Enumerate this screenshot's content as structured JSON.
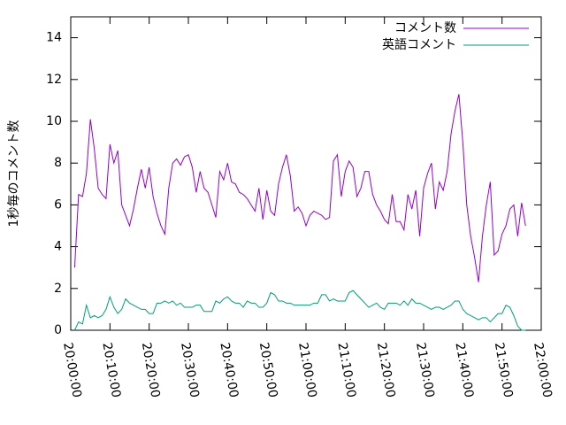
{
  "chart_data": {
    "type": "line",
    "y_label": "1秒毎のコメント数",
    "xlim": [
      "20:00:00",
      "22:00:00"
    ],
    "xticks": [
      "20:00:00",
      "20:10:00",
      "20:20:00",
      "20:30:00",
      "20:40:00",
      "20:50:00",
      "21:00:00",
      "21:10:00",
      "21:20:00",
      "21:30:00",
      "21:40:00",
      "21:50:00",
      "22:00:00"
    ],
    "ylim": [
      0,
      15
    ],
    "yticks": [
      0,
      2,
      4,
      6,
      8,
      10,
      12,
      14
    ],
    "legend": "top-right",
    "x": [
      "20:01:00",
      "20:02:00",
      "20:03:00",
      "20:04:00",
      "20:05:00",
      "20:06:00",
      "20:07:00",
      "20:08:00",
      "20:09:00",
      "20:10:00",
      "20:11:00",
      "20:12:00",
      "20:13:00",
      "20:14:00",
      "20:15:00",
      "20:16:00",
      "20:17:00",
      "20:18:00",
      "20:19:00",
      "20:20:00",
      "20:21:00",
      "20:22:00",
      "20:23:00",
      "20:24:00",
      "20:25:00",
      "20:26:00",
      "20:27:00",
      "20:28:00",
      "20:29:00",
      "20:30:00",
      "20:31:00",
      "20:32:00",
      "20:33:00",
      "20:34:00",
      "20:35:00",
      "20:36:00",
      "20:37:00",
      "20:38:00",
      "20:39:00",
      "20:40:00",
      "20:41:00",
      "20:42:00",
      "20:43:00",
      "20:44:00",
      "20:45:00",
      "20:46:00",
      "20:47:00",
      "20:48:00",
      "20:49:00",
      "20:50:00",
      "20:51:00",
      "20:52:00",
      "20:53:00",
      "20:54:00",
      "20:55:00",
      "20:56:00",
      "20:57:00",
      "20:58:00",
      "20:59:00",
      "21:00:00",
      "21:01:00",
      "21:02:00",
      "21:03:00",
      "21:04:00",
      "21:05:00",
      "21:06:00",
      "21:07:00",
      "21:08:00",
      "21:09:00",
      "21:10:00",
      "21:11:00",
      "21:12:00",
      "21:13:00",
      "21:14:00",
      "21:15:00",
      "21:16:00",
      "21:17:00",
      "21:18:00",
      "21:19:00",
      "21:20:00",
      "21:21:00",
      "21:22:00",
      "21:23:00",
      "21:24:00",
      "21:25:00",
      "21:26:00",
      "21:27:00",
      "21:28:00",
      "21:29:00",
      "21:30:00",
      "21:31:00",
      "21:32:00",
      "21:33:00",
      "21:34:00",
      "21:35:00",
      "21:36:00",
      "21:37:00",
      "21:38:00",
      "21:39:00",
      "21:40:00",
      "21:41:00",
      "21:42:00",
      "21:43:00",
      "21:44:00",
      "21:45:00",
      "21:46:00",
      "21:47:00",
      "21:48:00",
      "21:49:00",
      "21:50:00",
      "21:51:00",
      "21:52:00",
      "21:53:00",
      "21:54:00",
      "21:55:00",
      "21:56:00"
    ],
    "series": [
      {
        "name": "コメント数",
        "color": "#9400d3",
        "values": [
          3.0,
          6.5,
          6.4,
          7.5,
          10.1,
          8.7,
          6.8,
          6.5,
          6.3,
          8.9,
          8.0,
          8.6,
          6.0,
          5.5,
          5.0,
          5.8,
          6.8,
          7.7,
          6.8,
          7.8,
          6.4,
          5.6,
          5.0,
          4.6,
          6.8,
          8.0,
          8.2,
          7.9,
          8.3,
          8.4,
          7.8,
          6.6,
          7.6,
          6.8,
          6.6,
          6.0,
          5.4,
          7.6,
          7.2,
          8.0,
          7.1,
          7.0,
          6.6,
          6.5,
          6.3,
          6.0,
          5.7,
          6.8,
          5.3,
          6.7,
          5.7,
          5.5,
          7.0,
          7.8,
          8.4,
          7.4,
          5.7,
          5.9,
          5.6,
          5.0,
          5.5,
          5.7,
          5.6,
          5.5,
          5.3,
          5.4,
          8.1,
          8.4,
          6.4,
          7.6,
          8.1,
          7.8,
          6.4,
          6.8,
          7.6,
          7.6,
          6.5,
          6.0,
          5.7,
          5.3,
          5.1,
          6.5,
          5.2,
          5.2,
          4.8,
          6.5,
          5.8,
          6.7,
          4.5,
          6.8,
          7.5,
          8.0,
          5.8,
          7.1,
          6.7,
          7.6,
          9.4,
          10.5,
          11.3,
          9.0,
          6.0,
          4.5,
          3.5,
          2.3,
          4.5,
          6.0,
          7.1,
          3.6,
          3.8,
          4.6,
          5.0,
          5.8,
          6.0,
          4.5,
          6.1,
          5.0
        ]
      },
      {
        "name": "英語コメント",
        "color": "#009e73",
        "values": [
          0.0,
          0.4,
          0.3,
          1.2,
          0.6,
          0.7,
          0.6,
          0.7,
          1.0,
          1.6,
          1.1,
          0.8,
          1.0,
          1.5,
          1.3,
          1.2,
          1.1,
          1.0,
          1.0,
          0.8,
          0.8,
          1.3,
          1.3,
          1.4,
          1.3,
          1.4,
          1.2,
          1.3,
          1.1,
          1.1,
          1.1,
          1.2,
          1.2,
          0.9,
          0.9,
          0.9,
          1.4,
          1.3,
          1.5,
          1.6,
          1.4,
          1.3,
          1.3,
          1.1,
          1.4,
          1.3,
          1.3,
          1.1,
          1.1,
          1.3,
          1.8,
          1.7,
          1.4,
          1.4,
          1.3,
          1.3,
          1.2,
          1.2,
          1.2,
          1.2,
          1.2,
          1.3,
          1.3,
          1.7,
          1.7,
          1.4,
          1.5,
          1.4,
          1.4,
          1.4,
          1.8,
          1.9,
          1.7,
          1.5,
          1.3,
          1.1,
          1.2,
          1.3,
          1.1,
          1.0,
          1.3,
          1.3,
          1.3,
          1.2,
          1.4,
          1.2,
          1.5,
          1.3,
          1.3,
          1.2,
          1.1,
          1.0,
          1.1,
          1.1,
          1.0,
          1.1,
          1.2,
          1.4,
          1.4,
          1.0,
          0.8,
          0.7,
          0.6,
          0.5,
          0.6,
          0.6,
          0.4,
          0.6,
          0.8,
          0.8,
          1.2,
          1.1,
          0.7,
          0.2,
          0.0,
          0.0
        ]
      }
    ]
  }
}
